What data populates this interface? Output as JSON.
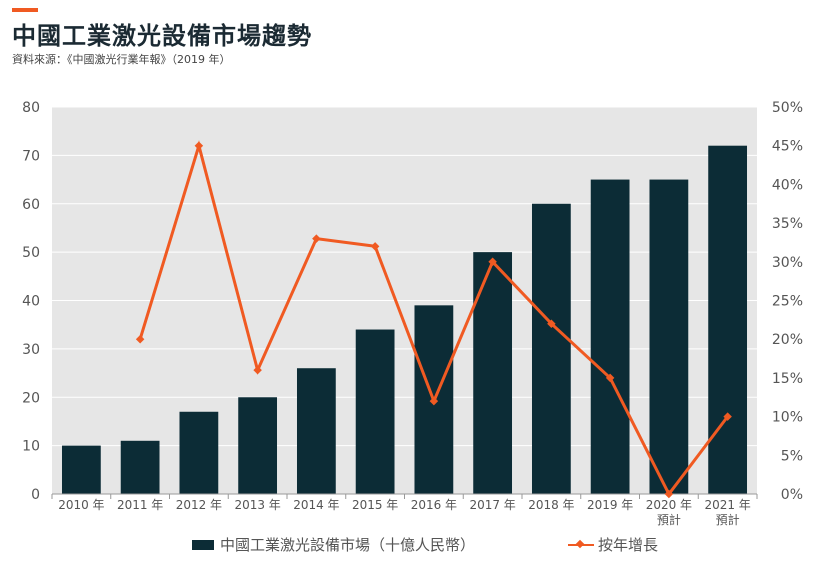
{
  "header": {
    "title": "中國工業激光設備市場趨勢",
    "source": "資料來源：《中國激光行業年報》（2019 年）"
  },
  "colors": {
    "bar": "#0c2c36",
    "line": "#f05a22",
    "plot_bg": "#e6e6e6",
    "accent": "#f05a22"
  },
  "chart_data": {
    "type": "bar",
    "categories": [
      "2010 年",
      "2011 年",
      "2012 年",
      "2013 年",
      "2014 年",
      "2015 年",
      "2016 年",
      "2017 年",
      "2018 年",
      "2019 年",
      "2020 年\n預計",
      "2021 年\n預計"
    ],
    "series": [
      {
        "name": "中國工業激光設備市場（十億人民幣）",
        "type": "bar",
        "axis": "left",
        "values": [
          10,
          11,
          17,
          20,
          26,
          34,
          39,
          50,
          60,
          65,
          65,
          72
        ]
      },
      {
        "name": "按年增長",
        "type": "line",
        "axis": "right",
        "values": [
          null,
          20,
          45,
          16,
          33,
          32,
          12,
          30,
          22,
          15,
          0,
          10
        ]
      }
    ],
    "ylim": [
      0,
      80
    ],
    "yticks": [
      0,
      10,
      20,
      30,
      40,
      50,
      60,
      70,
      80
    ],
    "y2lim": [
      0,
      50
    ],
    "y2ticks": [
      "0%",
      "5%",
      "10%",
      "15%",
      "20%",
      "25%",
      "30%",
      "35%",
      "40%",
      "45%",
      "50%"
    ],
    "legend_position": "bottom",
    "grid": true
  }
}
